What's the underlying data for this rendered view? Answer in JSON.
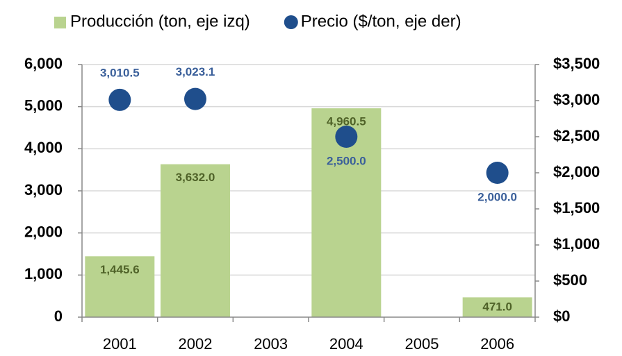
{
  "chart_data": {
    "type": "combo",
    "categories": [
      "2001",
      "2002",
      "2003",
      "2004",
      "2005",
      "2006"
    ],
    "series": [
      {
        "name": "Producción (ton, eje izq)",
        "type": "bar",
        "color": "#b9d38f",
        "label_color": "#4f6228",
        "values": [
          1445.6,
          3632.0,
          null,
          4960.5,
          null,
          471.0
        ],
        "value_labels": [
          "1,445.6",
          "3,632.0",
          null,
          "4,960.5",
          null,
          "471.0"
        ]
      },
      {
        "name": "Precio ($/ton, eje der)",
        "type": "scatter",
        "axis": "y2",
        "color": "#1f4e8c",
        "label_color": "#3a5f9a",
        "values": [
          3010.5,
          3023.1,
          null,
          2500.0,
          null,
          2000.0
        ],
        "value_labels": [
          "3,010.5",
          "3,023.1",
          null,
          "2,500.0",
          null,
          "2,000.0"
        ]
      }
    ],
    "ylim": [
      0,
      6000
    ],
    "yticks": [
      0,
      {
        "value": 1000,
        "label": "1,000"
      },
      {
        "value": 2000,
        "label": "2,000"
      },
      {
        "value": 3000,
        "label": "3,000"
      },
      {
        "value": 4000,
        "label": "4,000"
      },
      {
        "value": 5000,
        "label": "5,000"
      },
      {
        "value": 6000,
        "label": "6,000"
      }
    ],
    "y2lim": [
      0,
      3500
    ],
    "y2ticks": [
      {
        "value": 0,
        "label": "$0"
      },
      {
        "value": 500,
        "label": "$500"
      },
      {
        "value": 1000,
        "label": "$1,000"
      },
      {
        "value": 1500,
        "label": "$1,500"
      },
      {
        "value": 2000,
        "label": "$2,000"
      },
      {
        "value": 2500,
        "label": "$2,500"
      },
      {
        "value": 3000,
        "label": "$3,000"
      },
      {
        "value": 3500,
        "label": "$3,500"
      }
    ],
    "grid": true,
    "legend": "top"
  }
}
